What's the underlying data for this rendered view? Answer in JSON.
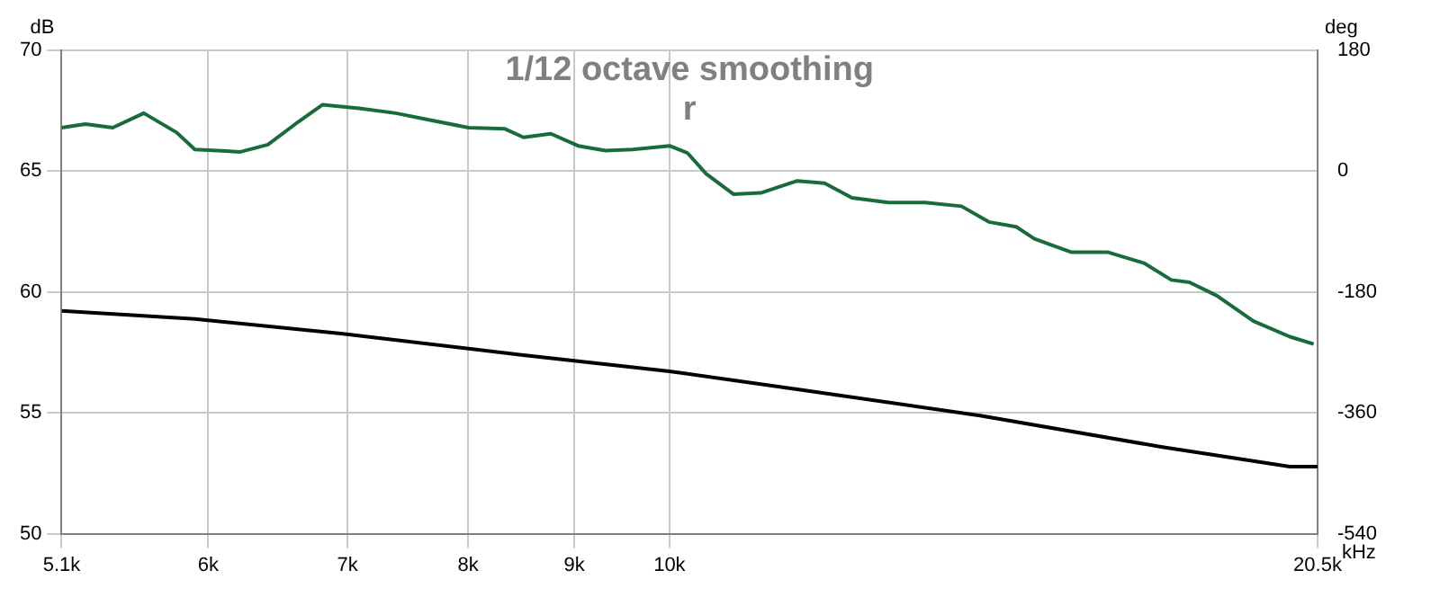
{
  "chart_data": {
    "type": "line",
    "title": "1/12 octave smoothing",
    "subtitle": "r",
    "ylabel": "dB",
    "xlabel": "kHz",
    "y2label": "deg",
    "log": "x",
    "grid": true,
    "legend": false,
    "marker": "none",
    "line_style": "solid",
    "xlim": [
      5100,
      20500
    ],
    "xticks": [
      {
        "value": 5100,
        "label": "5.1k"
      },
      {
        "value": 6000,
        "label": "6k"
      },
      {
        "value": 7000,
        "label": "7k"
      },
      {
        "value": 8000,
        "label": "8k"
      },
      {
        "value": 9000,
        "label": "9k"
      },
      {
        "value": 10000,
        "label": "10k"
      },
      {
        "value": 20500,
        "label": "20.5k"
      }
    ],
    "ylim": [
      50,
      70
    ],
    "yticks": [
      50,
      55,
      60,
      65,
      70
    ],
    "y2lim": [
      -540,
      180
    ],
    "y2ticks": [
      -540,
      -360,
      -180,
      0,
      180
    ],
    "series": [
      {
        "color": "#1a6b3c",
        "x": [
          5100,
          5236,
          5397,
          5586,
          5793,
          5911,
          6218,
          6409,
          6607,
          6810,
          7091,
          7384,
          7688,
          8005,
          8334,
          8506,
          8768,
          9037,
          9315,
          9601,
          10000,
          10202,
          10412,
          10733,
          11063,
          11520,
          11874,
          12240,
          12745,
          13271,
          13818,
          14244,
          14682,
          14982,
          15600,
          16243,
          16912,
          17434,
          17789,
          18336,
          19094,
          19880,
          20410
        ],
        "values": [
          66.8,
          66.95,
          66.8,
          67.4,
          66.6,
          65.9,
          65.8,
          66.1,
          66.95,
          67.75,
          67.6,
          67.4,
          67.1,
          66.8,
          66.75,
          66.4,
          66.55,
          66.05,
          65.85,
          65.9,
          66.05,
          65.75,
          64.9,
          64.05,
          64.1,
          64.6,
          64.5,
          63.9,
          63.7,
          63.7,
          63.55,
          62.9,
          62.7,
          62.2,
          61.65,
          61.65,
          61.2,
          60.5,
          60.4,
          59.85,
          58.8,
          58.15,
          57.85
        ]
      },
      {
        "color": "#000000",
        "axis": "y2",
        "x": [
          5100,
          5911,
          6949,
          8506,
          10000,
          11520,
          14106,
          17265,
          19880,
          20500
        ],
        "values": [
          -208,
          -220,
          -242,
          -274,
          -298,
          -325,
          -364,
          -411,
          -440,
          -440
        ]
      }
    ]
  }
}
